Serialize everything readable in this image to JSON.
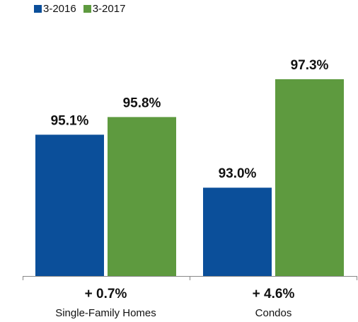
{
  "chart_data": {
    "type": "bar",
    "categories": [
      "Single-Family Homes",
      "Condos"
    ],
    "series": [
      {
        "name": "3-2016",
        "values": [
          95.1,
          93.0
        ],
        "labels": [
          "95.1%",
          "93.0%"
        ],
        "color": "#0b4f9a"
      },
      {
        "name": "3-2017",
        "values": [
          95.8,
          97.3
        ],
        "labels": [
          "95.8%",
          "97.3%"
        ],
        "color": "#5e9a3f"
      }
    ],
    "changes": [
      "+ 0.7%",
      "+ 4.6%"
    ],
    "ylim": [
      89.5,
      98.7
    ],
    "title": "",
    "xlabel": "",
    "ylabel": ""
  }
}
